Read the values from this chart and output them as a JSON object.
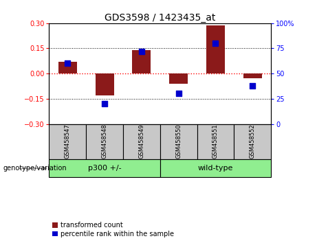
{
  "title": "GDS3598 / 1423435_at",
  "samples": [
    "GSM458547",
    "GSM458548",
    "GSM458549",
    "GSM458550",
    "GSM458551",
    "GSM458552"
  ],
  "transformed_count": [
    0.07,
    -0.13,
    0.14,
    -0.06,
    0.285,
    -0.03
  ],
  "percentile_rank": [
    60,
    20,
    72,
    30,
    80,
    38
  ],
  "group1_label": "p300 +/-",
  "group1_indices": [
    0,
    1,
    2
  ],
  "group2_label": "wild-type",
  "group2_indices": [
    3,
    4,
    5
  ],
  "group_annot": "genotype/variation",
  "bar_color": "#8B1A1A",
  "dot_color": "#0000CC",
  "ylim_left": [
    -0.3,
    0.3
  ],
  "ylim_right": [
    0,
    100
  ],
  "yticks_left": [
    -0.3,
    -0.15,
    0,
    0.15,
    0.3
  ],
  "yticks_right": [
    0,
    25,
    50,
    75,
    100
  ],
  "hlines_black": [
    0.15,
    -0.15
  ],
  "hline_red": 0.0,
  "legend_items": [
    "transformed count",
    "percentile rank within the sample"
  ],
  "green_color": "#90EE90",
  "gray_color": "#C8C8C8"
}
